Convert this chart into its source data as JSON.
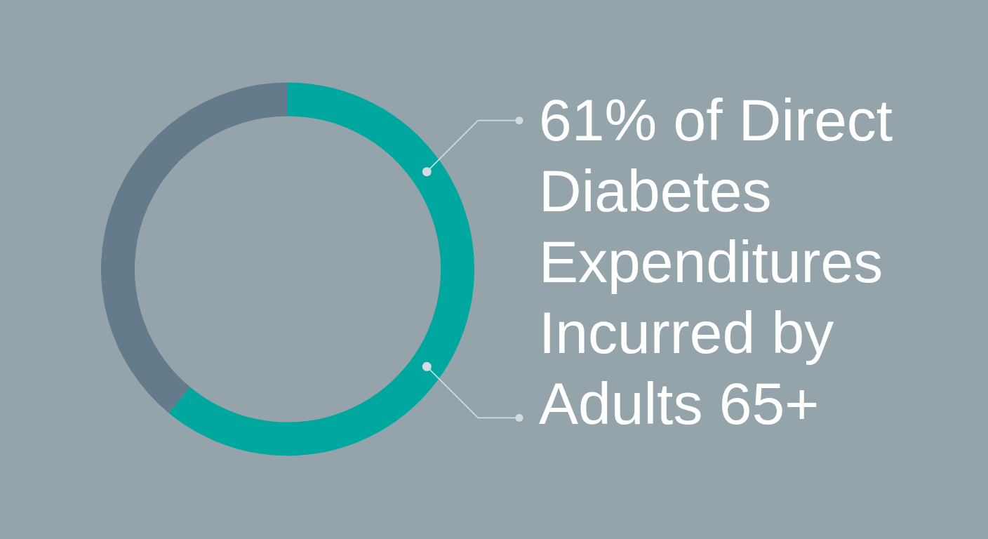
{
  "chart_data": {
    "type": "donut",
    "title": "61% of Direct Diabetes Expenditures Incurred by Adults 65+",
    "categories": [
      null,
      null
    ],
    "values": [
      61,
      39
    ],
    "colors": [
      "#00a79e",
      "#647b8b"
    ]
  }
}
